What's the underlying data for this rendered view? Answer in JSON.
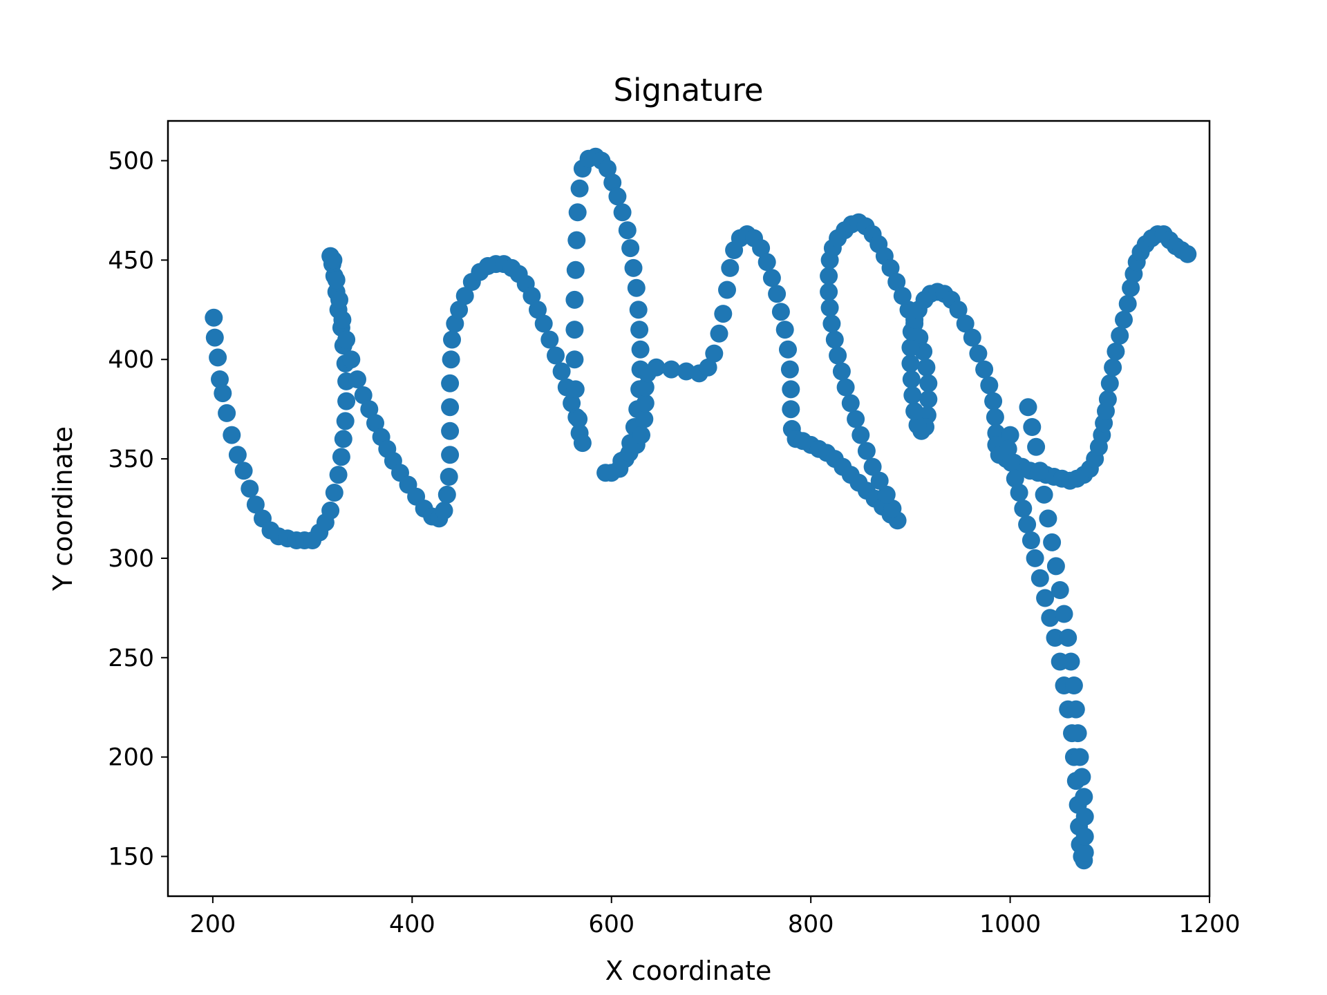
{
  "chart_data": {
    "type": "scatter",
    "title": "Signature",
    "xlabel": "X coordinate",
    "ylabel": "Y coordinate",
    "xlim": [
      155,
      1200
    ],
    "ylim": [
      130,
      520
    ],
    "xticks": [
      200,
      400,
      600,
      800,
      1000,
      1200
    ],
    "yticks": [
      150,
      200,
      250,
      300,
      350,
      400,
      450,
      500
    ],
    "grid": false,
    "legend": "none",
    "color": "#1f77b4",
    "series": [
      {
        "points": [
          [
            201,
            421
          ],
          [
            202,
            411
          ],
          [
            205,
            401
          ],
          [
            207,
            390
          ],
          [
            210,
            383
          ],
          [
            214,
            373
          ],
          [
            219,
            362
          ],
          [
            225,
            352
          ],
          [
            231,
            344
          ],
          [
            237,
            335
          ],
          [
            243,
            327
          ],
          [
            250,
            320
          ],
          [
            258,
            314
          ],
          [
            266,
            311
          ],
          [
            275,
            310
          ],
          [
            284,
            309
          ],
          [
            292,
            309
          ],
          [
            300,
            309
          ],
          [
            307,
            313
          ],
          [
            313,
            318
          ],
          [
            318,
            324
          ],
          [
            322,
            333
          ],
          [
            326,
            342
          ],
          [
            329,
            351
          ],
          [
            331,
            360
          ],
          [
            333,
            369
          ],
          [
            334,
            379
          ],
          [
            334,
            389
          ],
          [
            333,
            398
          ],
          [
            331,
            407
          ],
          [
            329,
            416
          ],
          [
            326,
            425
          ],
          [
            324,
            434
          ],
          [
            322,
            442
          ],
          [
            320,
            448
          ],
          [
            318,
            452
          ],
          [
            321,
            450
          ],
          [
            324,
            440
          ],
          [
            327,
            430
          ],
          [
            330,
            420
          ],
          [
            334,
            410
          ],
          [
            339,
            400
          ],
          [
            345,
            390
          ],
          [
            351,
            382
          ],
          [
            357,
            375
          ],
          [
            363,
            368
          ],
          [
            369,
            361
          ],
          [
            375,
            355
          ],
          [
            381,
            349
          ],
          [
            388,
            343
          ],
          [
            396,
            337
          ],
          [
            404,
            331
          ],
          [
            412,
            325
          ],
          [
            420,
            321
          ],
          [
            427,
            320
          ],
          [
            432,
            324
          ],
          [
            435,
            332
          ],
          [
            437,
            341
          ],
          [
            438,
            352
          ],
          [
            438,
            364
          ],
          [
            438,
            376
          ],
          [
            438,
            388
          ],
          [
            439,
            400
          ],
          [
            440,
            410
          ],
          [
            443,
            418
          ],
          [
            447,
            425
          ],
          [
            453,
            432
          ],
          [
            460,
            439
          ],
          [
            468,
            444
          ],
          [
            476,
            447
          ],
          [
            484,
            448
          ],
          [
            492,
            448
          ],
          [
            500,
            446
          ],
          [
            507,
            443
          ],
          [
            514,
            438
          ],
          [
            520,
            432
          ],
          [
            526,
            425
          ],
          [
            532,
            418
          ],
          [
            538,
            410
          ],
          [
            544,
            402
          ],
          [
            550,
            394
          ],
          [
            555,
            386
          ],
          [
            560,
            378
          ],
          [
            565,
            371
          ],
          [
            568,
            363
          ],
          [
            571,
            358
          ],
          [
            567,
            370
          ],
          [
            564,
            385
          ],
          [
            563,
            400
          ],
          [
            563,
            415
          ],
          [
            563,
            430
          ],
          [
            564,
            445
          ],
          [
            565,
            460
          ],
          [
            566,
            474
          ],
          [
            568,
            486
          ],
          [
            571,
            496
          ],
          [
            577,
            501
          ],
          [
            584,
            502
          ],
          [
            590,
            500
          ],
          [
            596,
            496
          ],
          [
            601,
            489
          ],
          [
            606,
            482
          ],
          [
            611,
            474
          ],
          [
            616,
            465
          ],
          [
            619,
            456
          ],
          [
            622,
            446
          ],
          [
            625,
            436
          ],
          [
            627,
            425
          ],
          [
            628,
            415
          ],
          [
            629,
            405
          ],
          [
            629,
            395
          ],
          [
            628,
            385
          ],
          [
            626,
            375
          ],
          [
            623,
            366
          ],
          [
            619,
            358
          ],
          [
            614,
            350
          ],
          [
            608,
            345
          ],
          [
            600,
            343
          ],
          [
            594,
            343
          ],
          [
            610,
            349
          ],
          [
            618,
            353
          ],
          [
            625,
            357
          ],
          [
            630,
            362
          ],
          [
            633,
            370
          ],
          [
            634,
            378
          ],
          [
            634,
            386
          ],
          [
            636,
            393
          ],
          [
            645,
            396
          ],
          [
            660,
            395
          ],
          [
            675,
            394
          ],
          [
            688,
            393
          ],
          [
            697,
            396
          ],
          [
            703,
            403
          ],
          [
            708,
            413
          ],
          [
            712,
            423
          ],
          [
            716,
            435
          ],
          [
            719,
            446
          ],
          [
            723,
            455
          ],
          [
            729,
            461
          ],
          [
            736,
            463
          ],
          [
            743,
            461
          ],
          [
            750,
            456
          ],
          [
            756,
            449
          ],
          [
            761,
            441
          ],
          [
            766,
            433
          ],
          [
            770,
            424
          ],
          [
            774,
            415
          ],
          [
            777,
            405
          ],
          [
            779,
            395
          ],
          [
            780,
            385
          ],
          [
            780,
            375
          ],
          [
            781,
            365
          ],
          [
            785,
            360
          ],
          [
            792,
            359
          ],
          [
            800,
            357
          ],
          [
            808,
            355
          ],
          [
            816,
            353
          ],
          [
            824,
            350
          ],
          [
            832,
            346
          ],
          [
            840,
            342
          ],
          [
            848,
            338
          ],
          [
            856,
            334
          ],
          [
            864,
            330
          ],
          [
            872,
            326
          ],
          [
            880,
            322
          ],
          [
            887,
            319
          ],
          [
            882,
            325
          ],
          [
            876,
            332
          ],
          [
            869,
            339
          ],
          [
            862,
            346
          ],
          [
            856,
            354
          ],
          [
            850,
            362
          ],
          [
            845,
            370
          ],
          [
            840,
            378
          ],
          [
            835,
            386
          ],
          [
            831,
            394
          ],
          [
            827,
            402
          ],
          [
            824,
            410
          ],
          [
            821,
            418
          ],
          [
            819,
            426
          ],
          [
            818,
            434
          ],
          [
            818,
            442
          ],
          [
            819,
            450
          ],
          [
            822,
            456
          ],
          [
            827,
            461
          ],
          [
            834,
            465
          ],
          [
            841,
            468
          ],
          [
            848,
            469
          ],
          [
            855,
            467
          ],
          [
            862,
            463
          ],
          [
            868,
            458
          ],
          [
            874,
            452
          ],
          [
            880,
            446
          ],
          [
            886,
            439
          ],
          [
            892,
            432
          ],
          [
            898,
            425
          ],
          [
            904,
            418
          ],
          [
            909,
            411
          ],
          [
            913,
            404
          ],
          [
            916,
            396
          ],
          [
            918,
            388
          ],
          [
            918,
            380
          ],
          [
            917,
            372
          ],
          [
            915,
            366
          ],
          [
            911,
            364
          ],
          [
            907,
            367
          ],
          [
            904,
            374
          ],
          [
            902,
            382
          ],
          [
            901,
            390
          ],
          [
            900,
            398
          ],
          [
            900,
            406
          ],
          [
            901,
            414
          ],
          [
            904,
            420
          ],
          [
            908,
            425
          ],
          [
            914,
            430
          ],
          [
            920,
            433
          ],
          [
            927,
            434
          ],
          [
            934,
            433
          ],
          [
            941,
            430
          ],
          [
            948,
            425
          ],
          [
            955,
            418
          ],
          [
            962,
            411
          ],
          [
            968,
            403
          ],
          [
            974,
            395
          ],
          [
            979,
            387
          ],
          [
            983,
            379
          ],
          [
            985,
            371
          ],
          [
            986,
            363
          ],
          [
            986,
            357
          ],
          [
            989,
            352
          ],
          [
            996,
            350
          ],
          [
            1004,
            348
          ],
          [
            1012,
            346
          ],
          [
            1020,
            344
          ],
          [
            1028,
            343
          ],
          [
            1036,
            342
          ],
          [
            1044,
            341
          ],
          [
            1052,
            340
          ],
          [
            1060,
            339
          ],
          [
            1067,
            340
          ],
          [
            1074,
            342
          ],
          [
            1080,
            345
          ],
          [
            1085,
            350
          ],
          [
            1089,
            356
          ],
          [
            1092,
            362
          ],
          [
            1094,
            368
          ],
          [
            1096,
            374
          ],
          [
            1098,
            380
          ],
          [
            1100,
            388
          ],
          [
            1103,
            396
          ],
          [
            1106,
            404
          ],
          [
            1110,
            412
          ],
          [
            1114,
            420
          ],
          [
            1118,
            428
          ],
          [
            1121,
            436
          ],
          [
            1124,
            443
          ],
          [
            1127,
            449
          ],
          [
            1131,
            454
          ],
          [
            1136,
            458
          ],
          [
            1142,
            461
          ],
          [
            1148,
            463
          ],
          [
            1154,
            463
          ],
          [
            1160,
            460
          ],
          [
            1166,
            457
          ],
          [
            1172,
            455
          ],
          [
            1178,
            453
          ],
          [
            1000,
            362
          ],
          [
            998,
            355
          ],
          [
            1001,
            348
          ],
          [
            1005,
            340
          ],
          [
            1009,
            333
          ],
          [
            1013,
            325
          ],
          [
            1017,
            317
          ],
          [
            1021,
            309
          ],
          [
            1025,
            300
          ],
          [
            1030,
            290
          ],
          [
            1035,
            280
          ],
          [
            1040,
            270
          ],
          [
            1045,
            260
          ],
          [
            1050,
            248
          ],
          [
            1054,
            236
          ],
          [
            1058,
            224
          ],
          [
            1062,
            212
          ],
          [
            1064,
            200
          ],
          [
            1066,
            188
          ],
          [
            1068,
            176
          ],
          [
            1069,
            165
          ],
          [
            1070,
            156
          ],
          [
            1072,
            150
          ],
          [
            1074,
            148
          ],
          [
            1075,
            152
          ],
          [
            1075,
            160
          ],
          [
            1075,
            170
          ],
          [
            1074,
            180
          ],
          [
            1072,
            190
          ],
          [
            1070,
            200
          ],
          [
            1068,
            212
          ],
          [
            1066,
            224
          ],
          [
            1064,
            236
          ],
          [
            1061,
            248
          ],
          [
            1058,
            260
          ],
          [
            1054,
            272
          ],
          [
            1050,
            284
          ],
          [
            1046,
            296
          ],
          [
            1042,
            308
          ],
          [
            1038,
            320
          ],
          [
            1034,
            332
          ],
          [
            1030,
            344
          ],
          [
            1026,
            356
          ],
          [
            1022,
            366
          ],
          [
            1018,
            376
          ]
        ]
      }
    ]
  }
}
